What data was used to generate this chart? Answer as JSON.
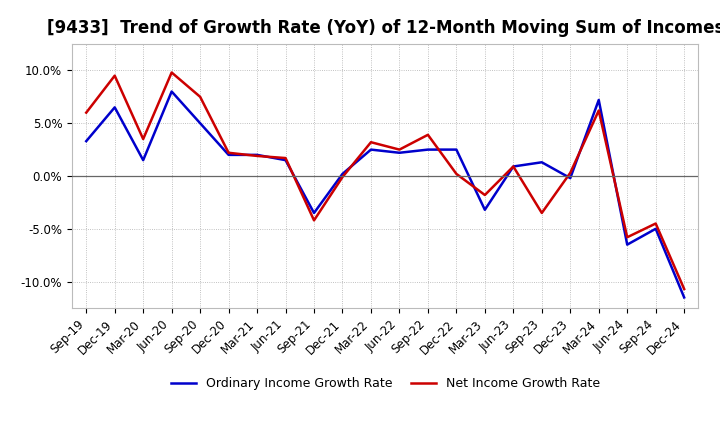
{
  "title": "[9433]  Trend of Growth Rate (YoY) of 12-Month Moving Sum of Incomes",
  "xlabels": [
    "Sep-19",
    "Dec-19",
    "Mar-20",
    "Jun-20",
    "Sep-20",
    "Dec-20",
    "Mar-21",
    "Jun-21",
    "Sep-21",
    "Dec-21",
    "Mar-22",
    "Jun-22",
    "Sep-22",
    "Dec-22",
    "Mar-23",
    "Jun-23",
    "Sep-23",
    "Dec-23",
    "Mar-24",
    "Jun-24",
    "Sep-24",
    "Dec-24"
  ],
  "ordinary_income": [
    3.3,
    6.5,
    1.5,
    8.0,
    5.0,
    2.0,
    2.0,
    1.5,
    -3.5,
    0.2,
    2.5,
    2.2,
    2.5,
    2.5,
    -3.2,
    0.9,
    1.3,
    -0.2,
    7.2,
    -6.5,
    -5.0,
    -11.5
  ],
  "net_income": [
    6.0,
    9.5,
    3.5,
    9.8,
    7.5,
    2.2,
    1.9,
    1.7,
    -4.2,
    -0.1,
    3.2,
    2.5,
    3.9,
    0.2,
    -1.8,
    0.9,
    -3.5,
    0.3,
    6.2,
    -5.8,
    -4.5,
    -10.7
  ],
  "ordinary_color": "#0000cc",
  "net_color": "#cc0000",
  "ylim": [
    -12.5,
    12.5
  ],
  "yticks": [
    -10.0,
    -5.0,
    0.0,
    5.0,
    10.0
  ],
  "background_color": "#ffffff",
  "grid_color": "#999999",
  "title_fontsize": 12,
  "tick_fontsize": 8.5,
  "legend_ordinary": "Ordinary Income Growth Rate",
  "legend_net": "Net Income Growth Rate",
  "zero_line_color": "#666666",
  "line_width": 1.8
}
